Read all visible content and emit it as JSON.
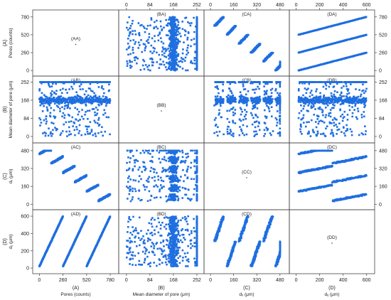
{
  "chart_data": {
    "type": "scatter",
    "title": "",
    "layout": "4x4 scatterplot matrix",
    "marker_color": "#1f6fe0",
    "variables": [
      {
        "id": "A",
        "name": "(A)",
        "label": "Pores (counts)",
        "ticks": [
          0,
          260,
          520,
          780
        ],
        "range": [
          -50,
          850
        ]
      },
      {
        "id": "B",
        "name": "(B)",
        "label": "Mean diameter of pore (μm)",
        "ticks": [
          0,
          84,
          168,
          252
        ],
        "range": [
          -20,
          270
        ]
      },
      {
        "id": "C",
        "name": "(C)",
        "label": "dₓ (μm)",
        "ticks": [
          0,
          160,
          320,
          480
        ],
        "range": [
          -30,
          530
        ]
      },
      {
        "id": "D",
        "name": "(D)",
        "label": "dᵧ (μm)",
        "ticks": [
          0,
          200,
          400,
          600
        ],
        "range": [
          -40,
          650
        ]
      }
    ],
    "top_ticks": {
      "B": [
        0,
        84,
        168,
        252
      ],
      "C": [
        0,
        160,
        320,
        480
      ],
      "D": [
        0,
        200,
        400,
        600
      ]
    },
    "right_ticks": {
      "A": [
        0,
        260,
        520,
        780
      ],
      "B": [
        0,
        84,
        168,
        252
      ],
      "C": [
        0,
        160,
        320,
        480
      ]
    },
    "panel_labels": [
      [
        "(AA)",
        "(BA)",
        "(CA)",
        "(DA)"
      ],
      [
        "(AB)",
        "(BB)",
        "(CB)",
        "(DB)"
      ],
      [
        "(AC)",
        "(BC)",
        "(CC)",
        "(DC)"
      ],
      [
        "(AD)",
        "(BD)",
        "(CD)",
        "(DD)"
      ]
    ],
    "summary": {
      "pores_count_range": [
        0,
        780
      ],
      "mean_diameter_range": [
        0,
        252
      ],
      "dx_range": [
        0,
        480
      ],
      "dy_range": [
        0,
        600
      ],
      "mean_diameter_cap": 252,
      "mean_diameter_cluster_center": 168
    }
  }
}
